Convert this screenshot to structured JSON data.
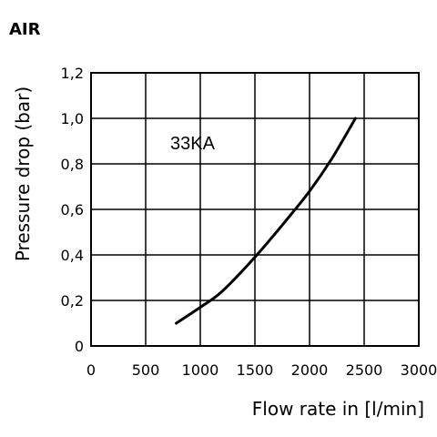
{
  "chart_data": {
    "type": "line",
    "title": "AIR",
    "xlabel": "Flow rate in [l/min]",
    "ylabel": "Pressure drop (bar)",
    "xlim": [
      0,
      3000
    ],
    "ylim": [
      0,
      1.2
    ],
    "x_ticks": [
      "0",
      "500",
      "1000",
      "1500",
      "2000",
      "2500",
      "3000"
    ],
    "y_ticks": [
      "0",
      "0,2",
      "0,4",
      "0,6",
      "0,8",
      "1,0",
      "1,2"
    ],
    "grid": true,
    "annotation": "33KA",
    "series": [
      {
        "name": "33KA",
        "color": "#000000",
        "x": [
          780,
          1000,
          1200,
          1500,
          1800,
          2000,
          2200,
          2420
        ],
        "y": [
          0.1,
          0.17,
          0.24,
          0.39,
          0.56,
          0.68,
          0.82,
          1.0
        ]
      }
    ]
  }
}
